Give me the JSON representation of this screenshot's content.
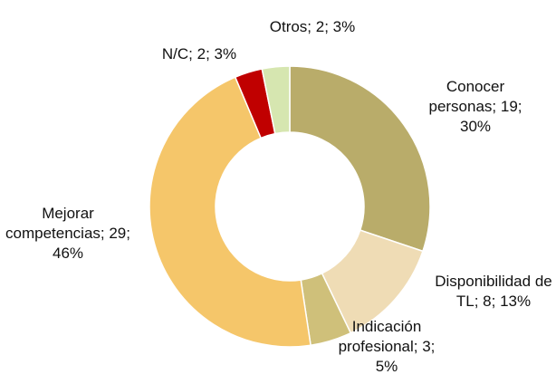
{
  "chart_data": {
    "type": "donut",
    "values": [
      19,
      8,
      3,
      29,
      2,
      2
    ],
    "value_labels": [
      "Conocer personas; 19; 30%",
      "Disponibilidad de TL; 8; 13%",
      "Indicación profesional; 3; 5%",
      "Mejorar competencias; 29; 46%",
      "N/C; 2; 3%",
      "Otros; 2; 3%"
    ],
    "colors": [
      "#b9ac6a",
      "#efdcb5",
      "#cfc07a",
      "#f5c66a",
      "#c00000",
      "#d6e6b0"
    ]
  }
}
